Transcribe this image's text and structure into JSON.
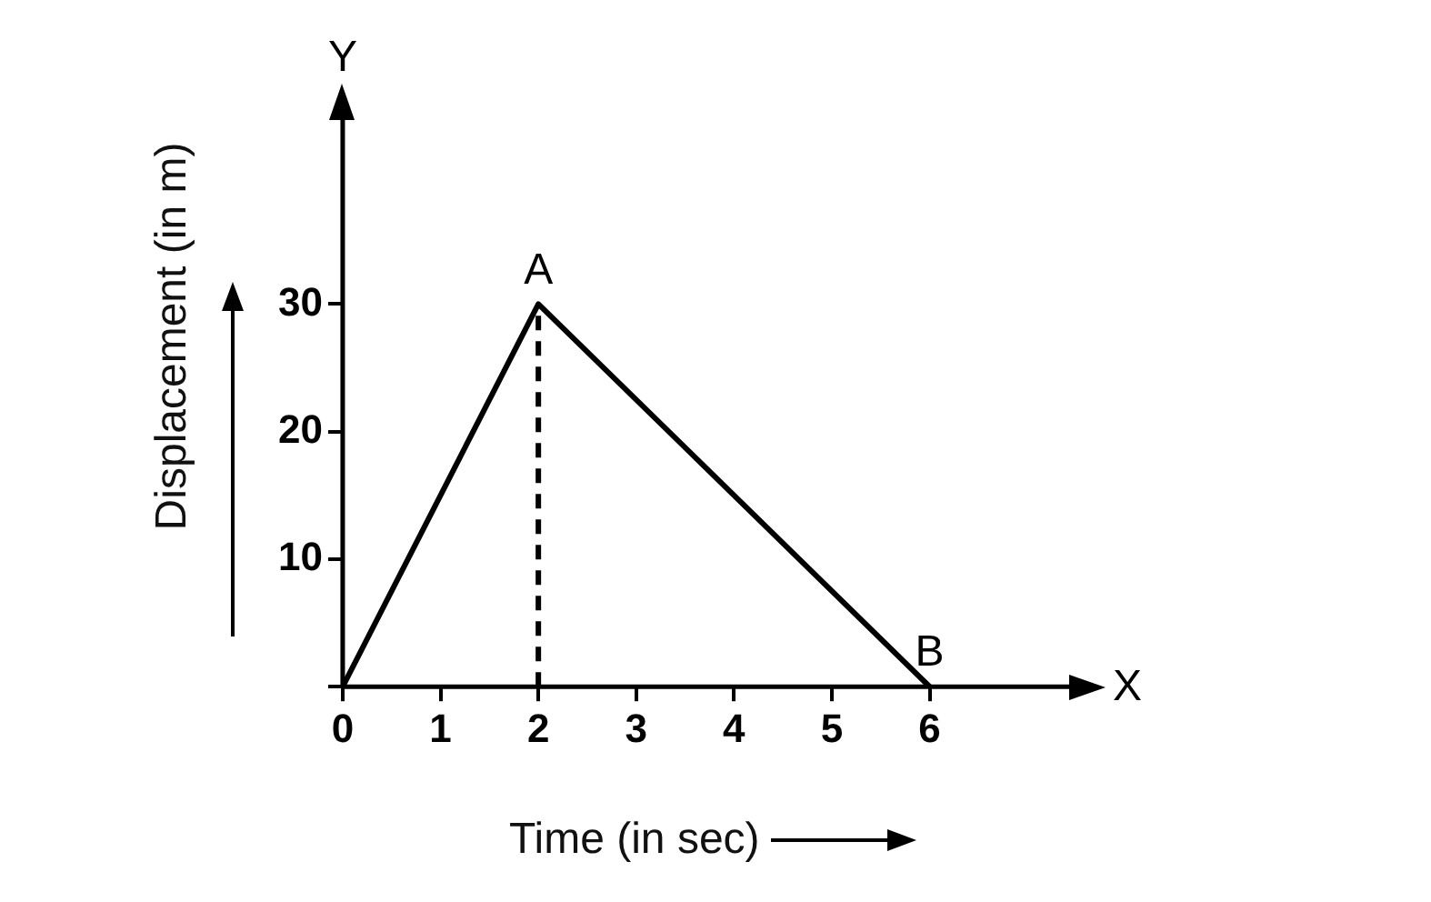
{
  "chart_data": {
    "type": "line",
    "xlabel": "Time (in sec)",
    "ylabel": "Displacement (in m)",
    "series": [
      {
        "color": "#000000",
        "x": [
          0,
          2,
          6
        ],
        "values": [
          0,
          30,
          0
        ],
        "line_style": "solid"
      },
      {
        "color": "#000000",
        "x": [
          2,
          2
        ],
        "values": [
          0,
          30
        ],
        "line_style": "dashed"
      }
    ],
    "xlim": [
      0,
      7.5
    ],
    "xticks": [
      0,
      1,
      2,
      3,
      4,
      5,
      6
    ],
    "ylim": [
      0,
      45
    ],
    "yticks": [
      {
        "value": 0,
        "label": null
      },
      10,
      20,
      30
    ],
    "annotations": [
      {
        "text": "A",
        "x": 2,
        "y": 30
      },
      {
        "text": "B",
        "x": 6,
        "y": 0
      },
      "X",
      "Y"
    ],
    "grid": false,
    "legend": false,
    "marker": "none"
  }
}
